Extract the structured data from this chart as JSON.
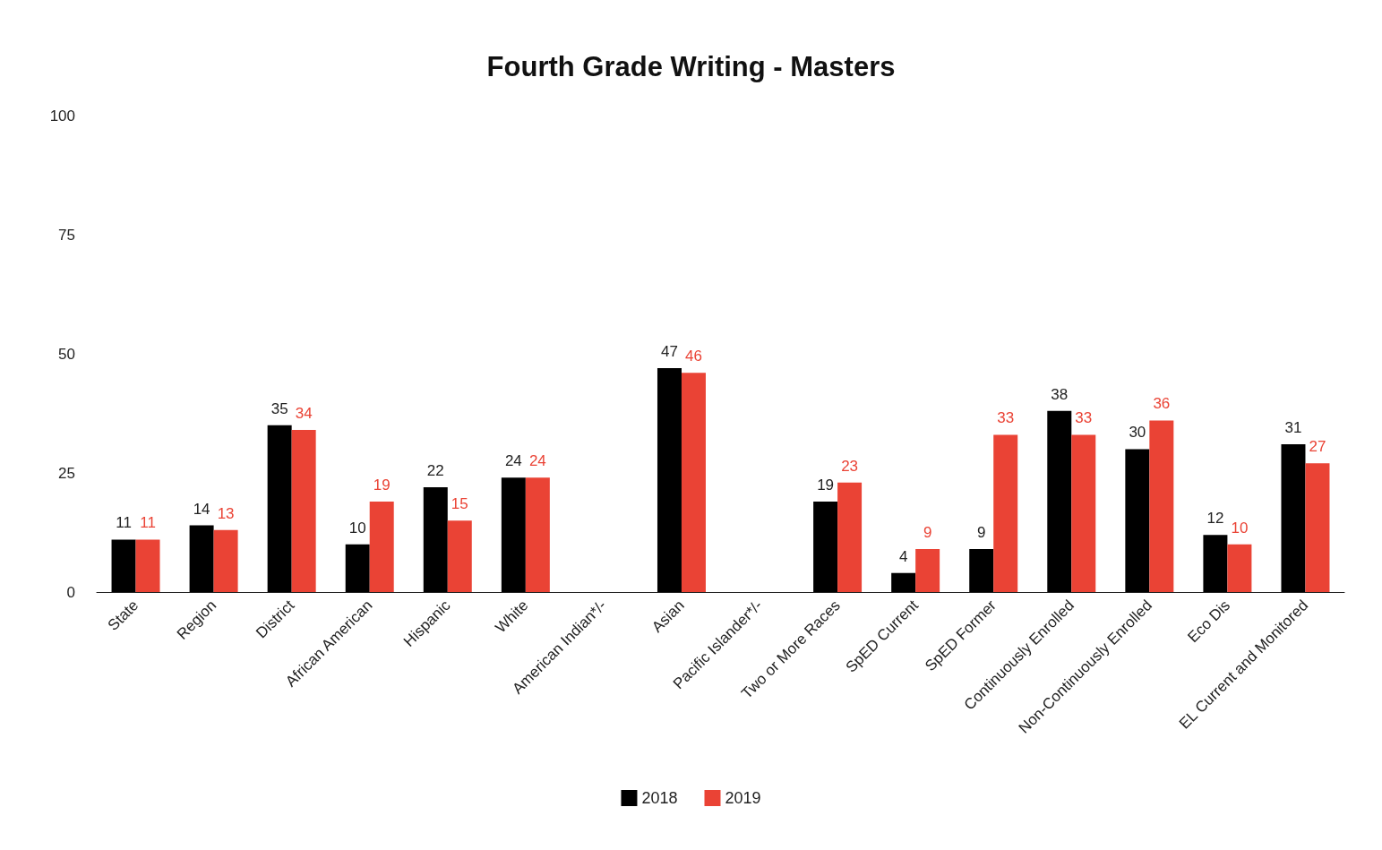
{
  "chart_data": {
    "type": "bar",
    "title": "Fourth Grade Writing - Masters",
    "categories": [
      "State",
      "Region",
      "District",
      "African American",
      "Hispanic",
      "White",
      "American Indian*/-",
      "Asian",
      "Pacific Islander*/-",
      "Two or More Races",
      "SpED Current",
      "SpED Former",
      "Continuously Enrolled",
      "Non-Continuously Enrolled",
      "Eco Dis",
      "EL Current and Monitored"
    ],
    "series": [
      {
        "name": "2018",
        "color": "#000000",
        "values": [
          11,
          14,
          35,
          10,
          22,
          24,
          null,
          47,
          null,
          19,
          4,
          9,
          38,
          30,
          12,
          31
        ]
      },
      {
        "name": "2019",
        "color": "#ea4335",
        "values": [
          11,
          13,
          34,
          19,
          15,
          24,
          null,
          46,
          null,
          23,
          9,
          33,
          33,
          36,
          10,
          27
        ]
      }
    ],
    "ylim": [
      0,
      100
    ],
    "yticks": [
      0,
      25,
      50,
      75,
      100
    ],
    "grid": false,
    "legend": "bottom",
    "data_labels": true
  }
}
